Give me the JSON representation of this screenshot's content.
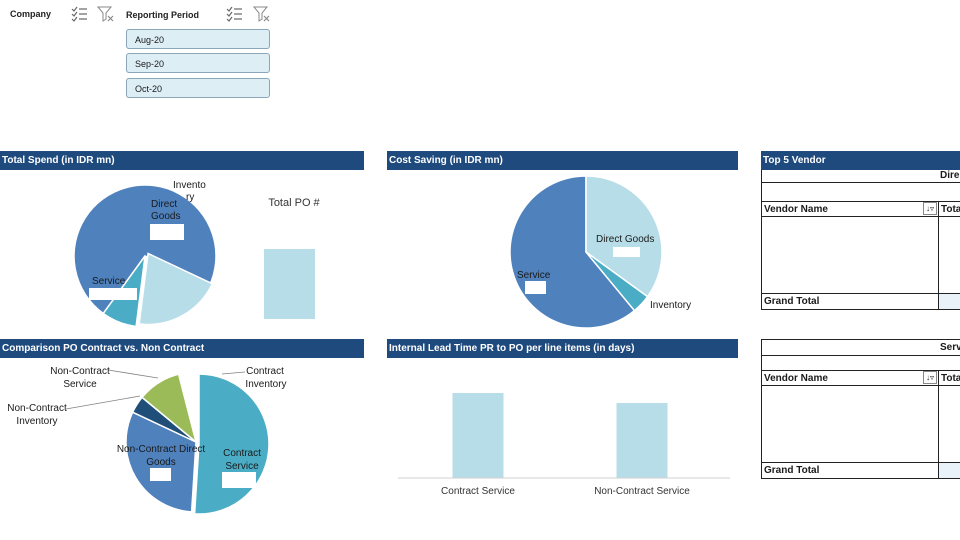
{
  "slicers": {
    "company": {
      "label": "Company"
    },
    "period": {
      "label": "Reporting Period",
      "items": [
        "Aug-20",
        "Sep-20",
        "Oct-20"
      ]
    }
  },
  "icons": {
    "multi_select": "multi-select-icon",
    "clear_filter": "clear-filter-icon",
    "sort_filter": "sort-filter-icon"
  },
  "colors": {
    "header_bg": "#1f4a7e",
    "service": "#4f81bd",
    "direct_goods": "#b7dde8",
    "inventory": "#4bacc6",
    "bar": "#b7dde8",
    "contract_service": "#4bacc6",
    "noncontract_direct": "#4f81bd",
    "noncontract_inventory": "#1f4e79",
    "noncontract_service": "#9bbb59"
  },
  "sections": {
    "total_spend": "Total Spend (in IDR mn)",
    "cost_saving": "Cost Saving (in IDR mn)",
    "top5": "Top 5 Vendor",
    "comparison": "Comparison PO Contract vs. Non Contract",
    "lead_time": "Internal Lead Time PR to PO per line items (in days)"
  },
  "pivot1": {
    "category": "Dire",
    "col_vendor": "Vendor Name",
    "col_total": "Tota",
    "grand_total": "Grand Total"
  },
  "pivot2": {
    "category": "Serv",
    "col_vendor": "Vendor Name",
    "col_total": "Tota",
    "grand_total": "Grand Total"
  },
  "chart_data": [
    {
      "type": "pie",
      "labels": [
        "Service",
        "Direct Goods",
        "Inventory"
      ],
      "label_text": [
        "Service",
        "Direct Goods",
        "Invento ry"
      ],
      "values": [
        72,
        20,
        8
      ],
      "exploded": "Direct Goods"
    },
    {
      "type": "bar",
      "title": "Total PO #",
      "categories": [
        ""
      ],
      "values": [
        1
      ]
    },
    {
      "type": "pie",
      "labels": [
        "Service",
        "Direct Goods",
        "Inventory"
      ],
      "values": [
        61,
        35,
        4
      ]
    },
    {
      "type": "pie",
      "labels": [
        "Contract Service",
        "Non-Contract Direct Goods",
        "Non-Contract Inventory",
        "Non-Contract Service",
        "Contract Inventory"
      ],
      "values": [
        51,
        31,
        4,
        10,
        4
      ],
      "exploded": "Contract Service"
    },
    {
      "type": "bar",
      "categories": [
        "Contract Service",
        "Non-Contract Service"
      ],
      "values": [
        85,
        75
      ],
      "ylim": [
        0,
        100
      ]
    }
  ]
}
